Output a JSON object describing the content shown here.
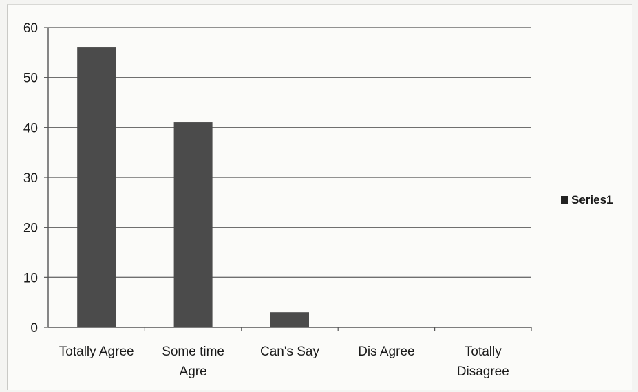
{
  "chart_data": {
    "type": "bar",
    "categories": [
      [
        "Totally Agree"
      ],
      [
        "Some time",
        "Agre"
      ],
      [
        "Can's Say"
      ],
      [
        "Dis Agree"
      ],
      [
        "Totally",
        "Disagree"
      ]
    ],
    "series": [
      {
        "name": "Series1",
        "values": [
          56,
          41,
          3,
          0,
          0
        ]
      }
    ],
    "yticks": [
      "0",
      "10",
      "20",
      "30",
      "40",
      "50",
      "60"
    ],
    "ylim": [
      0,
      60
    ],
    "grid": true,
    "legend": "right",
    "colors": {
      "bar": "#4b4b4b",
      "grid": "#6f6f6f",
      "axis": "#555555"
    }
  }
}
